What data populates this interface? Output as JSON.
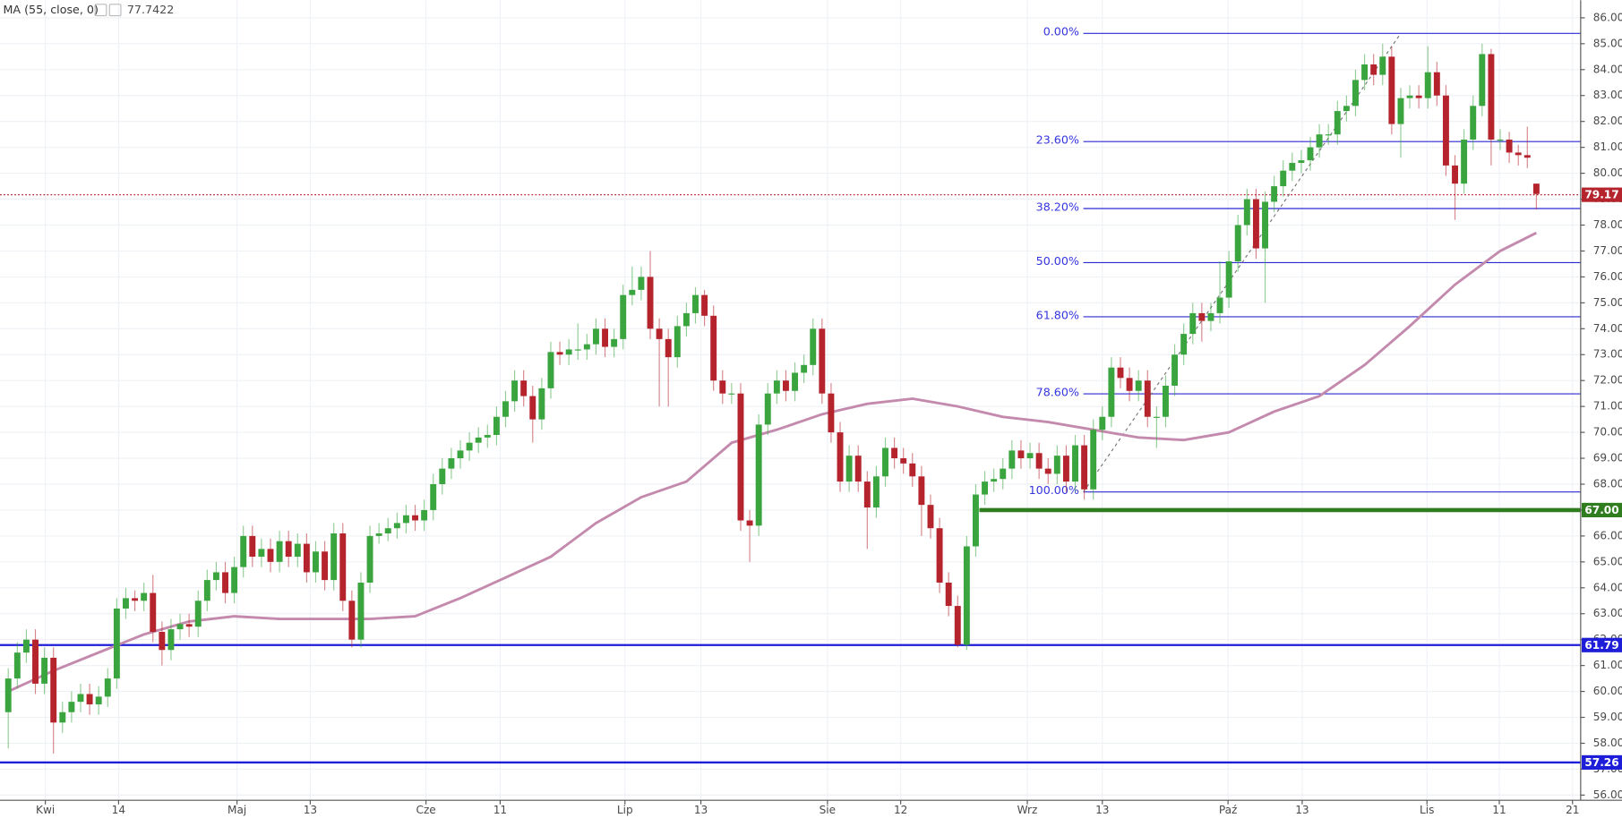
{
  "chart_data": {
    "type": "candlestick",
    "up_color": "#3aa53f",
    "down_color": "#b5242d",
    "open": [
      59.2,
      60.5,
      61.5,
      62.0,
      60.3,
      61.3,
      58.8,
      59.2,
      59.6,
      59.9,
      59.5,
      59.8,
      60.5,
      63.2,
      63.6,
      63.5,
      63.8,
      62.3,
      61.6,
      62.4,
      62.6,
      62.5,
      63.5,
      64.3,
      64.6,
      63.8,
      64.8,
      66.0,
      65.2,
      65.5,
      65.0,
      65.8,
      65.2,
      65.7,
      64.6,
      65.4,
      64.3,
      66.1,
      63.5,
      62.0,
      64.2,
      66.0,
      66.1,
      66.3,
      66.5,
      66.8,
      66.6,
      67.0,
      68.0,
      68.6,
      69.0,
      69.3,
      69.6,
      69.8,
      69.9,
      70.6,
      71.2,
      72.0,
      71.4,
      70.5,
      71.7,
      73.1,
      73.0,
      73.2,
      73.2,
      73.4,
      74.0,
      73.3,
      73.6,
      75.3,
      75.5,
      76.0,
      74.0,
      73.6,
      72.9,
      74.1,
      74.6,
      75.3,
      74.5,
      72.0,
      71.5,
      71.5,
      66.6,
      66.4,
      70.3,
      71.5,
      72.0,
      71.6,
      72.3,
      72.6,
      74.0,
      71.5,
      70.0,
      68.1,
      69.1,
      68.1,
      67.1,
      68.3,
      69.4,
      69.0,
      68.8,
      68.3,
      67.2,
      66.3,
      64.2,
      63.3,
      61.8,
      65.6,
      67.6,
      68.1,
      68.2,
      68.6,
      69.3,
      69.0,
      69.2,
      68.6,
      68.4,
      69.1,
      68.1,
      69.5,
      67.8,
      70.1,
      70.6,
      72.5,
      72.1,
      71.6,
      72.0,
      70.6,
      70.6,
      71.8,
      73.0,
      73.8,
      74.6,
      74.3,
      74.6,
      75.2,
      76.6,
      78.0,
      79.0,
      77.1,
      78.9,
      79.5,
      80.1,
      80.4,
      80.5,
      81.0,
      81.5,
      81.5,
      82.4,
      82.6,
      83.6,
      84.2,
      83.8,
      84.5,
      81.9,
      82.9,
      83.0,
      82.9,
      83.9,
      83.0,
      80.3,
      79.6,
      81.3,
      82.6,
      84.6,
      81.3,
      81.3,
      80.8,
      80.7,
      79.6
    ],
    "high": [
      60.9,
      61.9,
      62.4,
      62.4,
      61.7,
      61.7,
      59.6,
      60.0,
      60.3,
      60.3,
      60.2,
      60.9,
      63.6,
      64.0,
      63.9,
      64.2,
      64.5,
      62.7,
      62.8,
      63.0,
      63.0,
      63.9,
      64.7,
      65.0,
      65.0,
      65.2,
      66.4,
      66.4,
      65.9,
      65.9,
      66.2,
      66.2,
      66.1,
      66.1,
      65.8,
      65.8,
      66.5,
      66.5,
      63.9,
      64.6,
      66.4,
      66.5,
      66.7,
      66.9,
      67.2,
      67.2,
      67.4,
      68.4,
      69.0,
      69.4,
      69.7,
      70.0,
      70.2,
      70.3,
      71.0,
      71.6,
      72.4,
      72.4,
      71.8,
      72.1,
      73.5,
      73.5,
      73.6,
      74.2,
      73.8,
      74.4,
      74.4,
      74.0,
      75.7,
      76.4,
      76.4,
      77.0,
      74.4,
      74.0,
      74.5,
      75.0,
      75.6,
      75.5,
      74.9,
      72.4,
      71.9,
      71.9,
      67.0,
      70.7,
      71.9,
      72.4,
      72.4,
      72.7,
      73.0,
      74.4,
      74.4,
      71.9,
      70.4,
      69.5,
      69.5,
      68.5,
      68.7,
      69.8,
      69.8,
      69.4,
      69.2,
      68.7,
      67.6,
      66.7,
      64.6,
      63.7,
      66.0,
      68.0,
      68.5,
      68.6,
      69.0,
      69.7,
      69.7,
      69.6,
      69.6,
      69.0,
      69.5,
      69.5,
      69.9,
      69.9,
      70.5,
      71.0,
      72.9,
      72.9,
      72.5,
      72.4,
      72.4,
      71.0,
      72.2,
      73.4,
      74.2,
      75.0,
      75.0,
      75.0,
      76.6,
      77.0,
      78.4,
      79.4,
      79.4,
      79.3,
      79.9,
      80.5,
      80.8,
      80.9,
      81.4,
      81.9,
      81.9,
      82.8,
      83.0,
      84.0,
      84.6,
      84.6,
      85.0,
      84.9,
      83.3,
      83.4,
      83.4,
      84.9,
      84.3,
      83.4,
      80.7,
      81.7,
      83.0,
      85.0,
      84.8,
      81.7,
      81.6,
      81.1,
      81.8,
      79.6
    ],
    "low": [
      57.8,
      60.1,
      61.1,
      59.9,
      59.9,
      57.6,
      58.4,
      58.8,
      59.2,
      59.1,
      59.1,
      59.4,
      60.1,
      62.8,
      63.1,
      63.1,
      61.9,
      61.0,
      61.2,
      62.0,
      62.1,
      62.1,
      63.1,
      63.9,
      63.4,
      63.4,
      64.4,
      64.8,
      64.8,
      64.6,
      64.6,
      64.8,
      64.8,
      64.2,
      64.2,
      63.9,
      63.9,
      63.1,
      61.7,
      61.7,
      63.8,
      65.7,
      65.8,
      65.9,
      66.1,
      66.2,
      66.2,
      66.6,
      67.6,
      68.2,
      68.6,
      68.9,
      69.2,
      69.4,
      69.5,
      70.2,
      70.8,
      71.0,
      69.6,
      70.1,
      71.3,
      72.6,
      72.6,
      72.8,
      72.8,
      73.0,
      72.9,
      72.9,
      73.2,
      74.9,
      75.1,
      73.6,
      71.0,
      71.0,
      72.5,
      73.7,
      74.2,
      74.1,
      71.6,
      71.1,
      71.1,
      66.2,
      65.0,
      66.0,
      69.9,
      71.1,
      71.2,
      71.2,
      71.9,
      72.2,
      71.1,
      69.6,
      67.7,
      67.7,
      67.7,
      65.5,
      66.7,
      67.9,
      68.6,
      68.4,
      67.9,
      66.0,
      65.9,
      63.8,
      62.9,
      61.7,
      61.6,
      65.2,
      67.2,
      67.7,
      67.8,
      68.2,
      68.6,
      68.6,
      68.2,
      68.0,
      68.0,
      67.7,
      67.7,
      67.4,
      67.4,
      69.7,
      70.2,
      71.7,
      71.2,
      71.2,
      70.2,
      69.4,
      70.2,
      71.4,
      72.6,
      73.4,
      73.5,
      73.9,
      74.2,
      74.8,
      76.2,
      77.6,
      76.7,
      75.0,
      78.5,
      79.1,
      79.7,
      80.0,
      80.1,
      80.6,
      81.1,
      81.1,
      82.0,
      82.2,
      83.2,
      83.4,
      83.4,
      81.5,
      80.6,
      82.5,
      82.5,
      82.5,
      82.6,
      79.9,
      78.2,
      79.2,
      80.9,
      82.2,
      80.3,
      80.9,
      80.4,
      80.3,
      80.2,
      78.6
    ],
    "close": [
      60.5,
      61.5,
      62.0,
      60.3,
      61.3,
      58.8,
      59.2,
      59.6,
      59.9,
      59.5,
      59.8,
      60.5,
      63.2,
      63.6,
      63.5,
      63.8,
      62.3,
      61.6,
      62.4,
      62.6,
      62.5,
      63.5,
      64.3,
      64.6,
      63.8,
      64.8,
      66.0,
      65.2,
      65.5,
      65.0,
      65.8,
      65.2,
      65.7,
      64.6,
      65.4,
      64.3,
      66.1,
      63.5,
      62.0,
      64.2,
      66.0,
      66.1,
      66.3,
      66.5,
      66.8,
      66.6,
      67.0,
      68.0,
      68.6,
      69.0,
      69.3,
      69.6,
      69.8,
      69.9,
      70.6,
      71.2,
      72.0,
      71.4,
      70.5,
      71.7,
      73.1,
      73.0,
      73.2,
      73.2,
      73.4,
      74.0,
      73.3,
      73.6,
      75.3,
      75.5,
      76.0,
      74.0,
      73.6,
      72.9,
      74.1,
      74.6,
      75.3,
      74.5,
      72.0,
      71.5,
      71.5,
      66.6,
      66.4,
      70.3,
      71.5,
      72.0,
      71.6,
      72.3,
      72.6,
      74.0,
      71.5,
      70.0,
      68.1,
      69.1,
      68.1,
      67.1,
      68.3,
      69.4,
      69.0,
      68.8,
      68.3,
      67.2,
      66.3,
      64.2,
      63.3,
      61.8,
      65.6,
      67.6,
      68.1,
      68.2,
      68.6,
      69.3,
      69.0,
      69.2,
      68.6,
      68.4,
      69.1,
      68.1,
      69.5,
      67.8,
      70.1,
      70.6,
      72.5,
      72.1,
      71.6,
      72.0,
      70.6,
      70.6,
      71.8,
      73.0,
      73.8,
      74.6,
      74.3,
      74.6,
      75.2,
      76.6,
      78.0,
      79.0,
      77.1,
      78.9,
      79.5,
      80.1,
      80.4,
      80.5,
      81.0,
      81.5,
      81.5,
      82.4,
      82.6,
      83.6,
      84.2,
      83.8,
      84.5,
      81.9,
      82.9,
      83.0,
      82.9,
      83.9,
      83.0,
      80.3,
      79.6,
      81.3,
      82.6,
      84.6,
      81.3,
      81.3,
      80.8,
      80.7,
      80.6,
      79.2
    ],
    "ma": {
      "name": "MA (55, close, 0)",
      "last_value": 77.7422,
      "color": "#c48aad",
      "x": [
        0,
        5,
        10,
        15,
        20,
        25,
        30,
        35,
        40,
        45,
        50,
        55,
        60,
        65,
        70,
        75,
        80,
        85,
        90,
        95,
        100,
        105,
        110,
        115,
        120,
        125,
        130,
        135,
        140,
        145,
        150,
        155,
        160,
        165,
        169
      ],
      "values": [
        60.0,
        60.8,
        61.5,
        62.2,
        62.7,
        62.9,
        62.8,
        62.8,
        62.8,
        62.9,
        63.6,
        64.4,
        65.2,
        66.5,
        67.5,
        68.1,
        69.6,
        70.1,
        70.7,
        71.1,
        71.3,
        71.0,
        70.6,
        70.4,
        70.1,
        69.8,
        69.7,
        70.0,
        70.8,
        71.4,
        72.6,
        74.1,
        75.7,
        77.0,
        77.7
      ]
    },
    "hlines": [
      {
        "value": 79.17,
        "color": "#b5242d",
        "style": "dotted"
      },
      {
        "value": 67,
        "label": "67.00",
        "color": "#2f7d1f",
        "style": "thick",
        "start": 107.4
      },
      {
        "value": 61.79,
        "color": "#1e1ed8",
        "style": "solid"
      },
      {
        "value": 57.26,
        "color": "#1e1ed8",
        "style": "solid"
      }
    ],
    "fib": {
      "color": "#2a2ad0",
      "x": [
        118.9,
        154
      ],
      "values": [
        67.7,
        85.4
      ],
      "levels": [
        0,
        23.6,
        38.2,
        50,
        61.8,
        78.6,
        100
      ],
      "level_labels": [
        "0.00%",
        "23.60%",
        "38.20%",
        "50.00%",
        "61.80%",
        "78.60%",
        "100.00%"
      ]
    },
    "xlim": [
      -0.914,
      173.9
    ],
    "ylim": [
      55.8,
      86.68
    ],
    "xticks": [
      {
        "value": 4.1,
        "label": "Kwi"
      },
      {
        "value": 12.2,
        "label": "14"
      },
      {
        "value": 25.3,
        "label": "Maj"
      },
      {
        "value": 33.4,
        "label": "13"
      },
      {
        "value": 46.2,
        "label": "Cze"
      },
      {
        "value": 54.4,
        "label": "11"
      },
      {
        "value": 68.2,
        "label": "Lip"
      },
      {
        "value": 76.6,
        "label": "13"
      },
      {
        "value": 90.6,
        "label": "Sie"
      },
      {
        "value": 98.7,
        "label": "12"
      },
      {
        "value": 112.7,
        "label": "Wrz"
      },
      {
        "value": 121,
        "label": "13"
      },
      {
        "value": 134.9,
        "label": "Paź"
      },
      {
        "value": 143.1,
        "label": "13"
      },
      {
        "value": 156.9,
        "label": "Lis"
      },
      {
        "value": 164.9,
        "label": "11"
      },
      {
        "value": 173,
        "label": "21"
      }
    ],
    "yticks": [
      {
        "value": 56,
        "label": "56.00"
      },
      {
        "value": 57,
        "label": "57.00"
      },
      {
        "value": 58,
        "label": "58.00"
      },
      {
        "value": 59,
        "label": "59.00"
      },
      {
        "value": 60,
        "label": "60.00"
      },
      {
        "value": 61,
        "label": "61.00"
      },
      {
        "value": 62,
        "label": "62.00"
      },
      {
        "value": 63,
        "label": "63.00"
      },
      {
        "value": 64,
        "label": "64.00"
      },
      {
        "value": 65,
        "label": "65.00"
      },
      {
        "value": 66,
        "label": "66.00"
      },
      {
        "value": 67,
        "label": "67.00"
      },
      {
        "value": 68,
        "label": "68.00"
      },
      {
        "value": 69,
        "label": "69.00"
      },
      {
        "value": 70,
        "label": "70.00"
      },
      {
        "value": 71,
        "label": "71.00"
      },
      {
        "value": 72,
        "label": "72.00"
      },
      {
        "value": 73,
        "label": "73.00"
      },
      {
        "value": 74,
        "label": "74.00"
      },
      {
        "value": 75,
        "label": "75.00"
      },
      {
        "value": 76,
        "label": "76.00"
      },
      {
        "value": 77,
        "label": "77.00"
      },
      {
        "value": 78,
        "label": "78.00"
      },
      {
        "value": 79,
        "label": "79.00"
      },
      {
        "value": 80,
        "label": "80.00"
      },
      {
        "value": 81,
        "label": "81.00"
      },
      {
        "value": 82,
        "label": "82.00"
      },
      {
        "value": 83,
        "label": "83.00"
      },
      {
        "value": 84,
        "label": "84.00"
      },
      {
        "value": 85,
        "label": "85.00"
      },
      {
        "value": 86,
        "label": "86.00"
      }
    ],
    "grid": true
  }
}
